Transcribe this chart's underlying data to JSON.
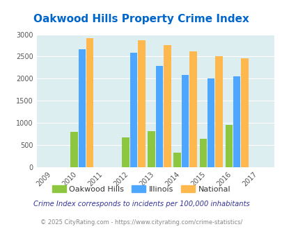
{
  "title": "Oakwood Hills Property Crime Index",
  "all_years": [
    2009,
    2010,
    2011,
    2012,
    2013,
    2014,
    2015,
    2016,
    2017
  ],
  "data_years": [
    2010,
    2012,
    2013,
    2014,
    2015,
    2016
  ],
  "oakwood_hills": [
    790,
    680,
    810,
    330,
    640,
    950
  ],
  "illinois": [
    2670,
    2590,
    2280,
    2090,
    2000,
    2050
  ],
  "national": [
    2920,
    2860,
    2750,
    2610,
    2500,
    2460
  ],
  "bar_colors": {
    "oakwood": "#8dc63f",
    "illinois": "#4da6ff",
    "national": "#ffb84d"
  },
  "ylim": [
    0,
    3000
  ],
  "yticks": [
    0,
    500,
    1000,
    1500,
    2000,
    2500,
    3000
  ],
  "bg_color": "#ddeef0",
  "title_color": "#0066cc",
  "legend_labels": [
    "Oakwood Hills",
    "Illinois",
    "National"
  ],
  "footnote1": "Crime Index corresponds to incidents per 100,000 inhabitants",
  "footnote2": "© 2025 CityRating.com - https://www.cityrating.com/crime-statistics/",
  "bar_width": 0.28,
  "xlim": [
    2008.4,
    2017.6
  ]
}
